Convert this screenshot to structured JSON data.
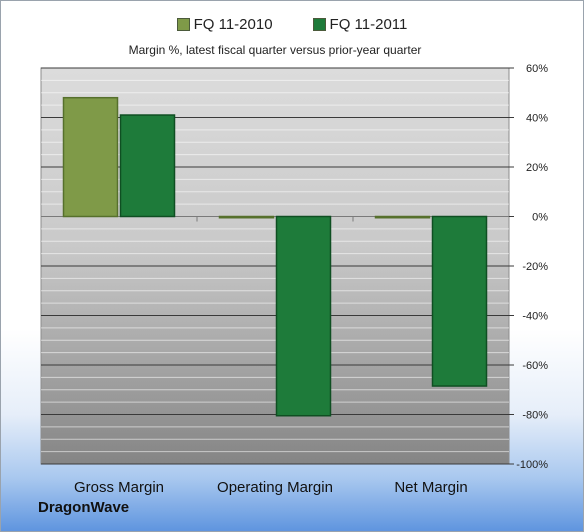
{
  "chart_data": {
    "type": "bar",
    "title": "Margin %,  latest fiscal quarter versus prior-year quarter",
    "categories": [
      "Gross Margin",
      "Operating Margin",
      "Net Margin"
    ],
    "series": [
      {
        "name": "FQ 11-2010",
        "values": [
          48,
          -0.5,
          -0.5
        ],
        "color": "#7f9a48"
      },
      {
        "name": "FQ 11-2011",
        "values": [
          41,
          -80.5,
          -68.5
        ],
        "color": "#1e7b3a"
      }
    ],
    "ylim": [
      -100,
      60
    ],
    "yticks": [
      60,
      40,
      20,
      0,
      -20,
      -40,
      -60,
      -80,
      -100
    ],
    "ytick_labels": [
      "60%",
      "40%",
      "20%",
      "0%",
      "-20%",
      "-40%",
      "-60%",
      "-80%",
      "-100%"
    ],
    "y_axis_side": "right",
    "grid": true,
    "legend_position": "top-center",
    "xlabel": "",
    "ylabel": ""
  },
  "company": "DragonWave"
}
